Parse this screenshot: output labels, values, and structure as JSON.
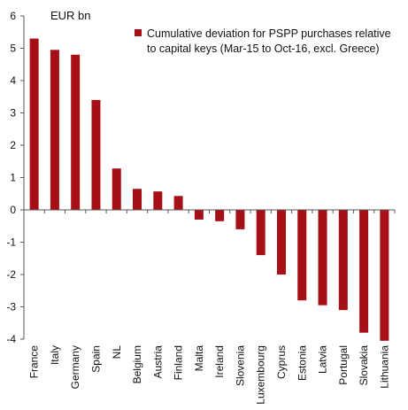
{
  "chart_data": {
    "type": "bar",
    "ylabel": "EUR bn",
    "ylim": [
      -4,
      6
    ],
    "yticks": [
      -4,
      -3,
      -2,
      -1,
      0,
      1,
      2,
      3,
      4,
      5,
      6
    ],
    "legend": "top-right",
    "grid": false,
    "categories": [
      "France",
      "Italy",
      "Germany",
      "Spain",
      "NL",
      "Belgium",
      "Austria",
      "Finland",
      "Malta",
      "Ireland",
      "Slovenia",
      "Luxembourg",
      "Cyprus",
      "Estonia",
      "Latvia",
      "Portugal",
      "Slovakia",
      "Lithuania"
    ],
    "series": [
      {
        "name": "Cumulative deviation for PSPP purchases relative to capital keys (Mar-15 to Oct-16, excl. Greece)",
        "name_lines": [
          "Cumulative deviation for PSPP purchases relative",
          "to capital keys (Mar-15 to Oct-16, excl. Greece)"
        ],
        "color": "#a50f15",
        "values": [
          5.3,
          4.95,
          4.8,
          3.4,
          1.28,
          0.65,
          0.57,
          0.43,
          -0.3,
          -0.35,
          -0.6,
          -1.4,
          -2.0,
          -2.8,
          -2.95,
          -3.1,
          -3.8,
          -4.05
        ]
      }
    ]
  }
}
